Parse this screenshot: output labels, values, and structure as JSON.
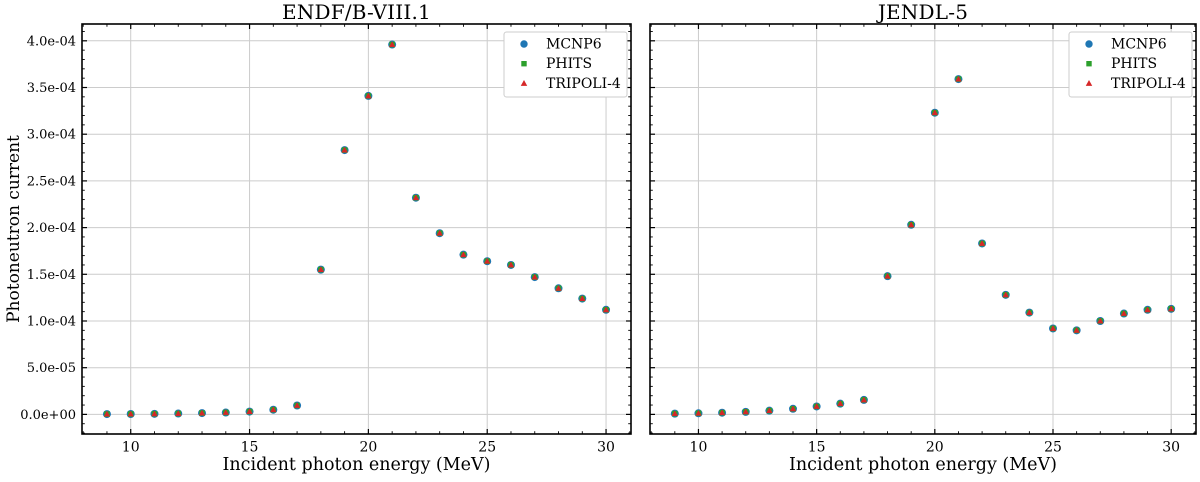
{
  "figure": {
    "background": "#ffffff",
    "text_color": "#000000",
    "grid_color": "#cccccc",
    "spine_color": "#000000",
    "legend_border_color": "#cccccc",
    "legend_background": "#ffffff"
  },
  "chart_data": [
    {
      "type": "scatter",
      "title": "ENDF/B-VIII.1",
      "xlabel": "Incident photon energy (MeV)",
      "ylabel": "Photoneutron current",
      "xlim": [
        7.95,
        31.05
      ],
      "ylim": [
        -2.1e-05,
        0.000418
      ],
      "grid": true,
      "legend_position": "upper right",
      "xticks": [
        10,
        15,
        20,
        25,
        30
      ],
      "xtick_labels": [
        "10",
        "15",
        "20",
        "25",
        "30"
      ],
      "x_minor_step": 1,
      "yticks": [
        0,
        5e-05,
        0.0001,
        0.00015,
        0.0002,
        0.00025,
        0.0003,
        0.00035,
        0.0004
      ],
      "ytick_labels": [
        "0.0e+00",
        "5.0e-05",
        "1.0e-04",
        "1.5e-04",
        "2.0e-04",
        "2.5e-04",
        "3.0e-04",
        "3.5e-04",
        "4.0e-04"
      ],
      "show_ytick_labels": true,
      "y_minor_step": 1e-05,
      "x": [
        9,
        10,
        11,
        12,
        13,
        14,
        15,
        16,
        17,
        18,
        19,
        20,
        21,
        22,
        23,
        24,
        25,
        26,
        27,
        28,
        29,
        30
      ],
      "series": [
        {
          "name": "MCNP6",
          "marker": "circle",
          "color": "#1f77b4",
          "values": [
            3e-07,
            4e-07,
            6e-07,
            9e-07,
            1.4e-06,
            2e-06,
            3e-06,
            5e-06,
            9.5e-06,
            0.000155,
            0.000283,
            0.000341,
            0.000396,
            0.000232,
            0.000194,
            0.000171,
            0.000164,
            0.00016,
            0.000147,
            0.000135,
            0.000124,
            0.000112
          ]
        },
        {
          "name": "PHITS",
          "marker": "square",
          "color": "#2ca02c",
          "values": [
            3e-07,
            4e-07,
            6e-07,
            9e-07,
            1.4e-06,
            2e-06,
            3e-06,
            5e-06,
            9.5e-06,
            0.000155,
            0.000283,
            0.000341,
            0.000396,
            0.000232,
            0.000194,
            0.000171,
            0.000164,
            0.00016,
            0.000147,
            0.000135,
            0.000124,
            0.000112
          ]
        },
        {
          "name": "TRIPOLI-4",
          "marker": "triangle",
          "color": "#d62728",
          "values": [
            3e-07,
            4e-07,
            6e-07,
            9e-07,
            1.4e-06,
            2e-06,
            3e-06,
            5e-06,
            9.5e-06,
            0.000155,
            0.000283,
            0.000341,
            0.000396,
            0.000232,
            0.000194,
            0.000171,
            0.000164,
            0.00016,
            0.000147,
            0.000135,
            0.000124,
            0.000112
          ]
        }
      ],
      "annotation": "all three series overlap at every point"
    },
    {
      "type": "scatter",
      "title": "JENDL-5",
      "xlabel": "Incident photon energy (MeV)",
      "ylabel": "",
      "xlim": [
        7.95,
        31.05
      ],
      "ylim": [
        -2.1e-05,
        0.000418
      ],
      "grid": true,
      "legend_position": "upper right",
      "xticks": [
        10,
        15,
        20,
        25,
        30
      ],
      "xtick_labels": [
        "10",
        "15",
        "20",
        "25",
        "30"
      ],
      "x_minor_step": 1,
      "yticks": [
        0,
        5e-05,
        0.0001,
        0.00015,
        0.0002,
        0.00025,
        0.0003,
        0.00035,
        0.0004
      ],
      "ytick_labels": [
        "0.0e+00",
        "5.0e-05",
        "1.0e-04",
        "1.5e-04",
        "2.0e-04",
        "2.5e-04",
        "3.0e-04",
        "3.5e-04",
        "4.0e-04"
      ],
      "show_ytick_labels": false,
      "y_minor_step": 1e-05,
      "x": [
        9,
        10,
        11,
        12,
        13,
        14,
        15,
        16,
        17,
        18,
        19,
        20,
        21,
        22,
        23,
        24,
        25,
        26,
        27,
        28,
        29,
        30
      ],
      "series": [
        {
          "name": "MCNP6",
          "marker": "circle",
          "color": "#1f77b4",
          "values": [
            8e-07,
            1.2e-06,
            1.8e-06,
            2.7e-06,
            4e-06,
            6e-06,
            8.5e-06,
            1.15e-05,
            1.55e-05,
            0.000148,
            0.000203,
            0.000323,
            0.000359,
            0.000183,
            0.000128,
            0.000109,
            9.2e-05,
            9e-05,
            0.0001,
            0.000108,
            0.000112,
            0.000113
          ]
        },
        {
          "name": "PHITS",
          "marker": "square",
          "color": "#2ca02c",
          "values": [
            8e-07,
            1.2e-06,
            1.8e-06,
            2.7e-06,
            4e-06,
            6e-06,
            8.5e-06,
            1.15e-05,
            1.55e-05,
            0.000148,
            0.000203,
            0.000323,
            0.000359,
            0.000183,
            0.000128,
            0.000109,
            9.2e-05,
            9e-05,
            0.0001,
            0.000108,
            0.000112,
            0.000113
          ]
        },
        {
          "name": "TRIPOLI-4",
          "marker": "triangle",
          "color": "#d62728",
          "values": [
            8e-07,
            1.2e-06,
            1.8e-06,
            2.7e-06,
            4e-06,
            6e-06,
            8.5e-06,
            1.15e-05,
            1.55e-05,
            0.000148,
            0.000203,
            0.000323,
            0.000359,
            0.000183,
            0.000128,
            0.000109,
            9.2e-05,
            9e-05,
            0.0001,
            0.000108,
            0.000112,
            0.000113
          ]
        }
      ],
      "annotation": "all three series overlap at every point"
    }
  ]
}
